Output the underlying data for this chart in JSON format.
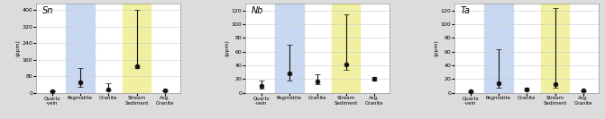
{
  "panels": [
    {
      "title": "Sn",
      "ylabel": "(ppm)",
      "ylim": [
        0,
        430
      ],
      "yticks": [
        0,
        80,
        160,
        240,
        320,
        400
      ],
      "categories": [
        "Quartz\n-vein",
        "Pegmatite",
        "Granite",
        "Stream\nSediment",
        "Avg.\nGranite"
      ],
      "point_values": [
        8,
        50,
        18,
        130,
        10
      ],
      "error_low": [
        2,
        20,
        8,
        10,
        3
      ],
      "error_high": [
        2,
        70,
        30,
        270,
        3
      ],
      "bg_pegmatite": "#c8d8f0",
      "bg_stream": "#f0f0a0",
      "highlight_cols": [
        1,
        3
      ]
    },
    {
      "title": "Nb",
      "ylabel": "(ppm)",
      "ylim": [
        0,
        130
      ],
      "yticks": [
        0,
        20,
        40,
        60,
        80,
        100,
        120
      ],
      "categories": [
        "Quartz\n-vein",
        "Pegmatite",
        "Granite",
        "Stream\nSediment",
        "Avg.\nGranite"
      ],
      "point_values": [
        10,
        28,
        17,
        42,
        20
      ],
      "error_low": [
        4,
        10,
        4,
        8,
        2
      ],
      "error_high": [
        8,
        42,
        10,
        72,
        3
      ],
      "bg_pegmatite": "#c8d8f0",
      "bg_stream": "#f0f0a0",
      "highlight_cols": [
        1,
        3
      ]
    },
    {
      "title": "Ta",
      "ylabel": "(ppm)",
      "ylim": [
        0,
        130
      ],
      "yticks": [
        0,
        20,
        40,
        60,
        80,
        100,
        120
      ],
      "categories": [
        "Quartz\n-vein",
        "Pegmatite",
        "Granite",
        "Stream\nSediment",
        "Avg.\nGranite"
      ],
      "point_values": [
        2,
        14,
        5,
        13,
        3
      ],
      "error_low": [
        1,
        6,
        2,
        5,
        1
      ],
      "error_high": [
        1,
        50,
        2,
        110,
        1
      ],
      "bg_pegmatite": "#c8d8f0",
      "bg_stream": "#f0f0a0",
      "highlight_cols": [
        1,
        3
      ]
    }
  ],
  "outer_bg": "#dcdcdc",
  "panel_bg": "#ffffff",
  "point_color": "#111111",
  "marker_size": 3.5,
  "capsize": 2,
  "linewidth": 0.8,
  "fig_width": 6.71,
  "fig_height": 1.33,
  "dpi": 100
}
